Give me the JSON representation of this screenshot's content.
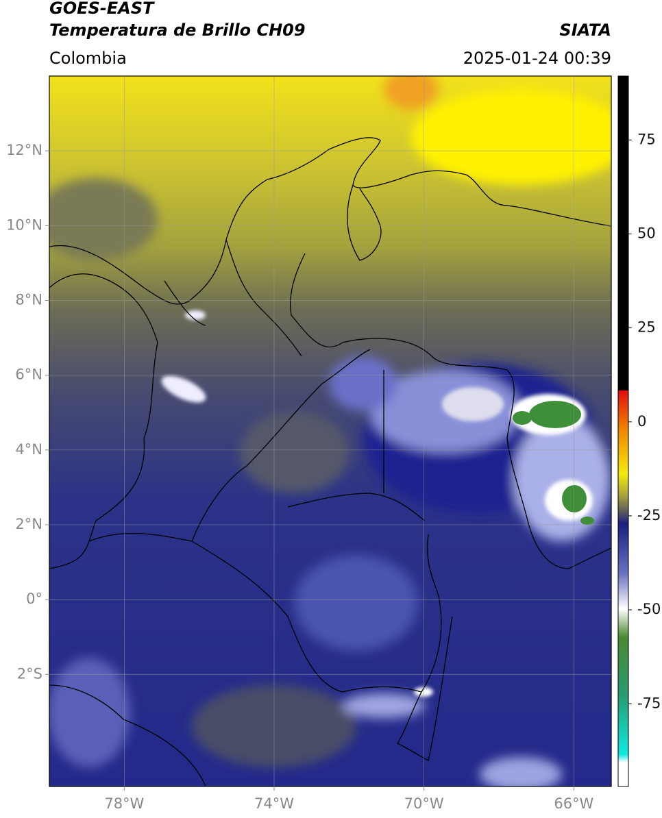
{
  "header": {
    "title": "GOES-EAST",
    "subtitle": "Temperatura de Brillo CH09",
    "source": "SIATA",
    "region": "Colombia",
    "datetime": "2025-01-24 00:39"
  },
  "map": {
    "xlim": [
      -80,
      -65
    ],
    "ylim": [
      -5,
      14
    ],
    "xticks": [
      {
        "value": -78,
        "label": "78°W"
      },
      {
        "value": -74,
        "label": "74°W"
      },
      {
        "value": -70,
        "label": "70°W"
      },
      {
        "value": -66,
        "label": "66°W"
      }
    ],
    "yticks": [
      {
        "value": 12,
        "label": "12°N"
      },
      {
        "value": 10,
        "label": "10°N"
      },
      {
        "value": 8,
        "label": "8°N"
      },
      {
        "value": 6,
        "label": "6°N"
      },
      {
        "value": 4,
        "label": "4°N"
      },
      {
        "value": 2,
        "label": "2°N"
      },
      {
        "value": 0,
        "label": "0°"
      },
      {
        "value": -2,
        "label": "2°S"
      }
    ],
    "grid": true
  },
  "colorbar": {
    "lim": [
      -97,
      92
    ],
    "ticks": [
      75,
      50,
      25,
      0,
      -25,
      -50,
      -75
    ]
  }
}
